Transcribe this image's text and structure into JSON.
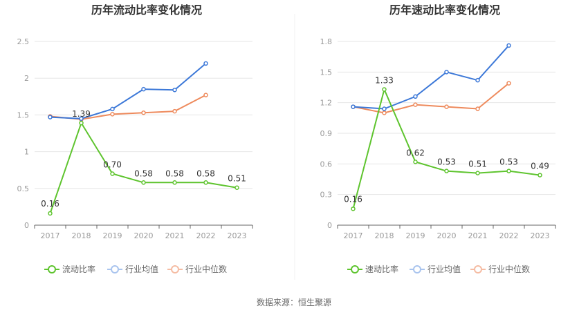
{
  "source_text": "数据来源：恒生聚源",
  "chart_data": [
    {
      "type": "line",
      "title": "历年流动比率变化情况",
      "categories": [
        "2017",
        "2018",
        "2019",
        "2020",
        "2021",
        "2022",
        "2023"
      ],
      "ylim": [
        0,
        2.5
      ],
      "yticks": [
        "0",
        "0.5",
        "1",
        "1.5",
        "2",
        "2.5"
      ],
      "ytick_values": [
        0,
        0.5,
        1,
        1.5,
        2,
        2.5
      ],
      "grid": true,
      "legend_position": "bottom",
      "series": [
        {
          "name": "流动比率",
          "color": "#5ec42e",
          "values": [
            0.16,
            1.39,
            0.7,
            0.58,
            0.58,
            0.58,
            0.51
          ],
          "labels": [
            "0.16",
            "1.39",
            "0.70",
            "0.58",
            "0.58",
            "0.58",
            "0.51"
          ]
        },
        {
          "name": "行业均值",
          "color": "#3c78d8",
          "values": [
            1.47,
            1.45,
            1.58,
            1.85,
            1.84,
            2.2,
            null
          ]
        },
        {
          "name": "行业中位数",
          "color": "#ee8a5c",
          "values": [
            1.48,
            1.44,
            1.51,
            1.53,
            1.55,
            1.77,
            null
          ]
        }
      ]
    },
    {
      "type": "line",
      "title": "历年速动比率变化情况",
      "categories": [
        "2017",
        "2018",
        "2019",
        "2020",
        "2021",
        "2022",
        "2023"
      ],
      "ylim": [
        0,
        1.8
      ],
      "yticks": [
        "0",
        "0.3",
        "0.6",
        "0.9",
        "1.2",
        "1.5",
        "1.8"
      ],
      "ytick_values": [
        0,
        0.3,
        0.6,
        0.9,
        1.2,
        1.5,
        1.8
      ],
      "grid": true,
      "legend_position": "bottom",
      "series": [
        {
          "name": "速动比率",
          "color": "#5ec42e",
          "values": [
            0.16,
            1.33,
            0.62,
            0.53,
            0.51,
            0.53,
            0.49
          ],
          "labels": [
            "0.16",
            "1.33",
            "0.62",
            "0.53",
            "0.51",
            "0.53",
            "0.49"
          ]
        },
        {
          "name": "行业均值",
          "color": "#3c78d8",
          "values": [
            1.16,
            1.14,
            1.26,
            1.5,
            1.42,
            1.76,
            null
          ]
        },
        {
          "name": "行业中位数",
          "color": "#ee8a5c",
          "values": [
            1.16,
            1.1,
            1.18,
            1.16,
            1.14,
            1.39,
            null
          ]
        }
      ]
    }
  ]
}
